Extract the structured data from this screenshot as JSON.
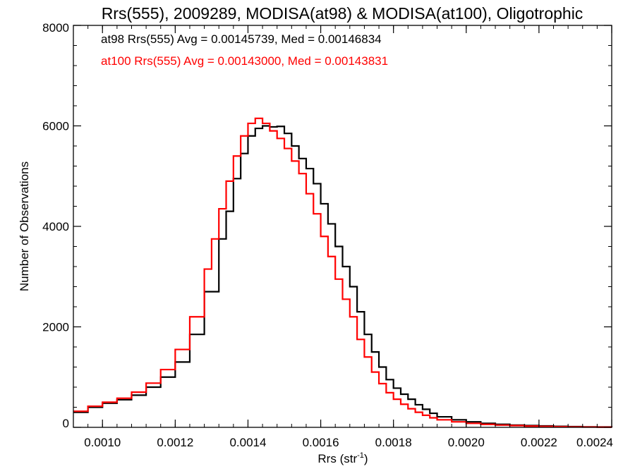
{
  "chart_data": {
    "type": "line",
    "title": "Rrs(555), 2009289, MODISA(at98) & MODISA(at100), Oligotrophic",
    "xlabel": "Rrs (str",
    "xlabel_sup": "-1",
    "xlabel_close": ")",
    "ylabel": "Number of Observations",
    "xlim": [
      0.00092,
      0.0024
    ],
    "ylim": [
      0,
      8000
    ],
    "x_ticks": [
      0.001,
      0.0012,
      0.0014,
      0.0016,
      0.0018,
      0.002,
      0.0022,
      0.0024
    ],
    "x_tick_labels": [
      "0.0010",
      "0.0012",
      "0.0014",
      "0.0016",
      "0.0018",
      "0.0020",
      "0.0022",
      "0.0024"
    ],
    "y_ticks": [
      0,
      2000,
      4000,
      6000,
      8000
    ],
    "y_tick_labels": [
      "0",
      "2000",
      "4000",
      "6000",
      "8000"
    ],
    "grid": false,
    "step": true,
    "annotations": [
      {
        "text": "at98 Rrs(555) Avg = 0.00145739, Med = 0.00146834",
        "color": "#000000"
      },
      {
        "text": "at100 Rrs(555) Avg = 0.00143000, Med = 0.00143831",
        "color": "#ff0000"
      }
    ],
    "series": [
      {
        "color": "#000000",
        "x": [
          0.00092,
          0.00096,
          0.001,
          0.00104,
          0.00108,
          0.00112,
          0.00116,
          0.0012,
          0.00124,
          0.00128,
          0.00132,
          0.00134,
          0.00136,
          0.00138,
          0.0014,
          0.00142,
          0.00144,
          0.00146,
          0.00148,
          0.0015,
          0.00152,
          0.00154,
          0.00156,
          0.00158,
          0.0016,
          0.00162,
          0.00164,
          0.00166,
          0.00168,
          0.0017,
          0.00172,
          0.00174,
          0.00176,
          0.00178,
          0.0018,
          0.00182,
          0.00184,
          0.00186,
          0.00188,
          0.0019,
          0.00192,
          0.00196,
          0.002,
          0.00204,
          0.00208,
          0.00212,
          0.00216,
          0.0022,
          0.00224,
          0.00228,
          0.00232,
          0.00236,
          0.0024
        ],
        "values": [
          300,
          400,
          480,
          550,
          640,
          800,
          1000,
          1300,
          1850,
          2700,
          3750,
          4300,
          4950,
          5450,
          5800,
          5950,
          6000,
          5980,
          5990,
          5850,
          5600,
          5350,
          5150,
          4850,
          4450,
          4050,
          3600,
          3200,
          2800,
          2300,
          1850,
          1500,
          1200,
          950,
          780,
          660,
          560,
          450,
          360,
          280,
          210,
          150,
          110,
          80,
          60,
          45,
          35,
          28,
          20,
          15,
          10,
          8,
          5
        ]
      },
      {
        "color": "#ff0000",
        "x": [
          0.00092,
          0.00096,
          0.001,
          0.00104,
          0.00108,
          0.00112,
          0.00116,
          0.0012,
          0.00124,
          0.00128,
          0.0013,
          0.00132,
          0.00134,
          0.00136,
          0.00138,
          0.0014,
          0.00142,
          0.00144,
          0.00146,
          0.00148,
          0.0015,
          0.00152,
          0.00154,
          0.00156,
          0.00158,
          0.0016,
          0.00162,
          0.00164,
          0.00166,
          0.00168,
          0.0017,
          0.00172,
          0.00174,
          0.00176,
          0.00178,
          0.0018,
          0.00182,
          0.00184,
          0.00186,
          0.00188,
          0.0019,
          0.00192,
          0.00196,
          0.002,
          0.00204,
          0.00208,
          0.00212,
          0.00216,
          0.0022,
          0.00224,
          0.00228,
          0.00232,
          0.00236,
          0.0024
        ],
        "values": [
          320,
          420,
          500,
          580,
          700,
          880,
          1150,
          1550,
          2200,
          3150,
          3750,
          4350,
          4900,
          5400,
          5800,
          6050,
          6150,
          6050,
          5900,
          5750,
          5550,
          5300,
          5050,
          4650,
          4250,
          3800,
          3400,
          2950,
          2550,
          2200,
          1750,
          1400,
          1100,
          870,
          690,
          560,
          460,
          370,
          300,
          240,
          190,
          150,
          110,
          80,
          60,
          45,
          35,
          25,
          18,
          12,
          8,
          6,
          4,
          3
        ]
      }
    ]
  }
}
